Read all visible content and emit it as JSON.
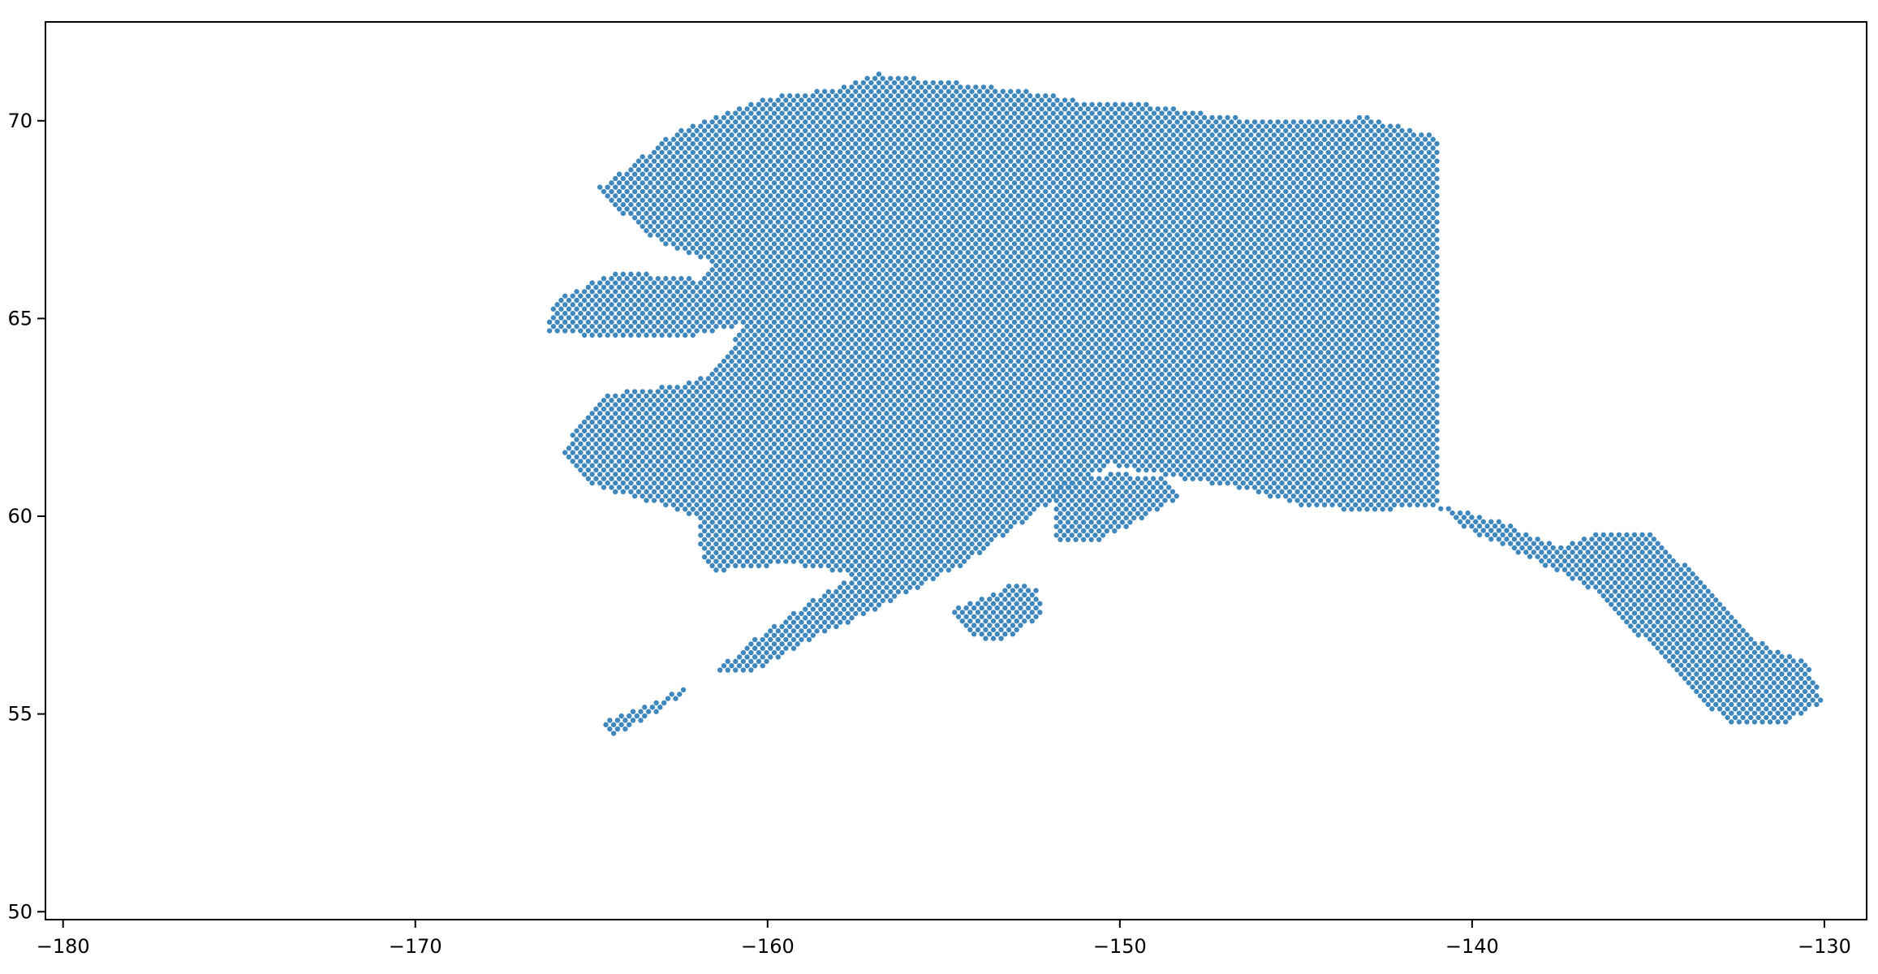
{
  "chart_data": {
    "type": "scatter",
    "title": "",
    "xlabel": "",
    "ylabel": "",
    "xlim": [
      -180.5,
      -128.8
    ],
    "ylim": [
      49.8,
      72.5
    ],
    "x_ticks": [
      -180,
      -170,
      -160,
      -150,
      -140,
      -130
    ],
    "x_tick_labels": [
      "−180",
      "−170",
      "−160",
      "−150",
      "−140",
      "−130"
    ],
    "y_ticks": [
      50,
      55,
      60,
      65,
      70
    ],
    "y_tick_labels": [
      "50",
      "55",
      "60",
      "65",
      "70"
    ],
    "grid": false,
    "legend": "none",
    "marker_color": "#3f88bd",
    "grid_spacing": [
      0.22,
      0.11
    ],
    "series": [
      {
        "regions": [
          {
            "kind": "mainland",
            "points": [
              [
                -164.8,
                68.3
              ],
              [
                -162.5,
                69.8
              ],
              [
                -160,
                70.6
              ],
              [
                -158,
                70.8
              ],
              [
                -157,
                71.2
              ],
              [
                -155,
                71
              ],
              [
                -153,
                70.8
              ],
              [
                -151,
                70.5
              ],
              [
                -149,
                70.4
              ],
              [
                -147,
                70.1
              ],
              [
                -145,
                70
              ],
              [
                -143,
                70.1
              ],
              [
                -141,
                69.6
              ],
              [
                -141,
                60.3
              ],
              [
                -143,
                60.1
              ],
              [
                -145,
                60.3
              ],
              [
                -147,
                60.8
              ],
              [
                -148,
                60.9
              ],
              [
                -150.2,
                61.3
              ],
              [
                -151.5,
                60.7
              ],
              [
                -152.5,
                60
              ],
              [
                -153.5,
                59.4
              ],
              [
                -154.2,
                58.9
              ],
              [
                -155.5,
                58.3
              ],
              [
                -157,
                57.6
              ],
              [
                -158.5,
                57
              ],
              [
                -160.5,
                56
              ],
              [
                -161.5,
                56.1
              ],
              [
                -160.5,
                56.8
              ],
              [
                -158.5,
                58
              ],
              [
                -157.5,
                58.5
              ],
              [
                -158.5,
                58.7
              ],
              [
                -159.5,
                58.8
              ],
              [
                -161.5,
                58.6
              ],
              [
                -162,
                59.2
              ],
              [
                -162,
                60
              ],
              [
                -163.5,
                60.4
              ],
              [
                -165,
                60.8
              ],
              [
                -165.8,
                61.6
              ],
              [
                -165.3,
                62.5
              ],
              [
                -164.5,
                63.1
              ],
              [
                -162,
                63.4
              ],
              [
                -161,
                64.2
              ],
              [
                -160.8,
                64.8
              ],
              [
                -162.5,
                64.5
              ],
              [
                -164.5,
                64.5
              ],
              [
                -166.3,
                64.7
              ],
              [
                -166,
                65.5
              ],
              [
                -164.3,
                66.2
              ],
              [
                -162,
                66
              ],
              [
                -161.5,
                66.4
              ],
              [
                -163.5,
                67.1
              ],
              [
                -164.8,
                68.3
              ]
            ]
          },
          {
            "kind": "southeast",
            "points": [
              [
                -141,
                60.3
              ],
              [
                -139,
                59.8
              ],
              [
                -137.5,
                59.2
              ],
              [
                -136.5,
                59.6
              ],
              [
                -135,
                59.6
              ],
              [
                -134,
                58.8
              ],
              [
                -133,
                57.8
              ],
              [
                -131.8,
                56.8
              ],
              [
                -130.5,
                56.3
              ],
              [
                -130,
                55.3
              ],
              [
                -131,
                54.8
              ],
              [
                -132.8,
                54.8
              ],
              [
                -134,
                55.8
              ],
              [
                -135.5,
                57.2
              ],
              [
                -136.5,
                58.1
              ],
              [
                -138.5,
                59
              ],
              [
                -140.5,
                59.8
              ],
              [
                -141,
                60.3
              ]
            ]
          },
          {
            "kind": "peninsula",
            "points": [
              [
                -161.5,
                56.1
              ],
              [
                -163,
                55.1
              ],
              [
                -164.5,
                54.4
              ],
              [
                -164.7,
                54.8
              ],
              [
                -163,
                55.4
              ],
              [
                -161.7,
                55.9
              ],
              [
                -161.5,
                56.1
              ]
            ]
          },
          {
            "kind": "kenai",
            "points": [
              [
                -151.8,
                60.8
              ],
              [
                -150.2,
                61.1
              ],
              [
                -148.8,
                61
              ],
              [
                -148.2,
                60.5
              ],
              [
                -149.4,
                59.9
              ],
              [
                -150.8,
                59.3
              ],
              [
                -151.8,
                59.4
              ],
              [
                -151.8,
                60.8
              ]
            ]
          },
          {
            "kind": "kodiak",
            "points": [
              [
                -154.8,
                57.6
              ],
              [
                -153,
                58.3
              ],
              [
                -152.3,
                58.2
              ],
              [
                -152.2,
                57.5
              ],
              [
                -153.4,
                56.8
              ],
              [
                -154.2,
                57
              ],
              [
                -154.8,
                57.6
              ]
            ]
          }
        ]
      }
    ]
  }
}
